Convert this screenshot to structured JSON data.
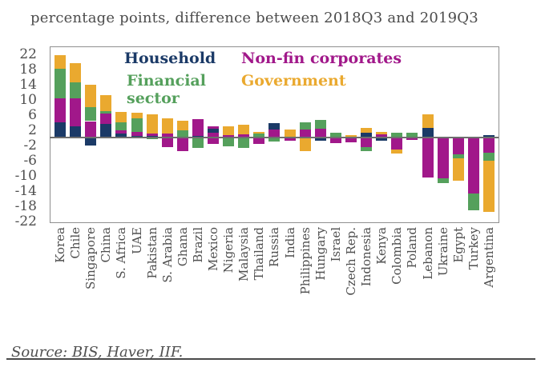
{
  "title": "percentage points, difference between 2018Q3 and 2019Q3",
  "source": "Source: BIS, Haver, IIF.",
  "legend": {
    "household": "Household",
    "nonfin": "Non-fin corporates",
    "financial": "Financial sector",
    "government": "Government"
  },
  "chart_data": {
    "type": "bar",
    "stacked": true,
    "title": "percentage points, difference between 2018Q3 and 2019Q3",
    "xlabel": "",
    "ylabel": "percentage points",
    "ylim": [
      -22,
      24
    ],
    "yticks": [
      22,
      18,
      14,
      10,
      6,
      2,
      -2,
      -6,
      -10,
      -14,
      -18,
      -22
    ],
    "grid": false,
    "legend_position": "top-inside",
    "colors": {
      "H": "#1b3a67",
      "N": "#a1188a",
      "F": "#55a05c",
      "G": "#eaa92f"
    },
    "series_key": {
      "H": "Household",
      "N": "Non-fin corporates",
      "F": "Financial sector",
      "G": "Government"
    },
    "categories": [
      "Korea",
      "Chile",
      "Singapore",
      "China",
      "S. Africa",
      "UAE",
      "Pakistan",
      "S. Arabia",
      "Ghana",
      "Brazil",
      "Mexico",
      "Nigeria",
      "Malaysia",
      "Thailand",
      "Russia",
      "India",
      "Philippines",
      "Hungary",
      "Israel",
      "Czech Rep.",
      "Indonesia",
      "Kenya",
      "Colombia",
      "Poland",
      "Lebanon",
      "Ukraine",
      "Egypt",
      "Turkey",
      "Argentina"
    ],
    "series": [
      {
        "name": "Household",
        "values": [
          4.0,
          3.1,
          -2.1,
          3.6,
          1.1,
          0.5,
          0.5,
          0,
          0,
          0.5,
          0.9,
          0,
          0,
          0,
          1.6,
          0,
          0,
          -0.7,
          0,
          0,
          1.4,
          -0.8,
          0,
          0,
          2.6,
          0,
          0,
          0,
          0.7
        ]
      },
      {
        "name": "Non-fin corporates",
        "values": [
          6.4,
          7.4,
          4.4,
          2.9,
          0.8,
          1.0,
          0.7,
          -1.3,
          -3.5,
          4.4,
          0.5,
          0.8,
          0.9,
          -1.5,
          2.2,
          -0.8,
          2.2,
          2.5,
          -1.4,
          -1.2,
          -2.5,
          1.0,
          -3.0,
          -0.6,
          -10.5,
          -10.6,
          -4.4,
          -14.6,
          -4.0
        ]
      },
      {
        "name": "Financial sector",
        "values": [
          7.8,
          4.1,
          3.7,
          0.5,
          2.1,
          3.6,
          -0.4,
          0,
          2.0,
          -2.7,
          0,
          -2.3,
          -2.6,
          1.2,
          -1.0,
          0,
          1.8,
          2.2,
          1.4,
          0,
          -0.9,
          0,
          1.4,
          1.4,
          0,
          -1.4,
          -0.9,
          -4.4,
          -2.0
        ]
      },
      {
        "name": "Government",
        "values": [
          3.6,
          5.0,
          5.8,
          4.2,
          2.9,
          1.6,
          4.9,
          3.9,
          2.6,
          0,
          0,
          2.2,
          2.5,
          0.3,
          0,
          2.2,
          -3.4,
          0,
          0,
          0.8,
          1.2,
          0.5,
          -1.1,
          0,
          3.5,
          0,
          -5.9,
          0,
          -13.5
        ]
      }
    ],
    "stacks": [
      {
        "name": "Korea",
        "pos": [
          [
            "H",
            4.0
          ],
          [
            "N",
            6.4
          ],
          [
            "F",
            7.8
          ],
          [
            "G",
            3.6
          ]
        ],
        "neg": []
      },
      {
        "name": "Chile",
        "pos": [
          [
            "H",
            3.1
          ],
          [
            "N",
            7.4
          ],
          [
            "F",
            4.1
          ],
          [
            "G",
            5.0
          ]
        ],
        "neg": []
      },
      {
        "name": "Singapore",
        "pos": [
          [
            "N",
            4.4
          ],
          [
            "F",
            3.7
          ],
          [
            "G",
            5.8
          ]
        ],
        "neg": [
          [
            "H",
            2.1
          ]
        ]
      },
      {
        "name": "China",
        "pos": [
          [
            "H",
            3.6
          ],
          [
            "N",
            2.9
          ],
          [
            "F",
            0.5
          ],
          [
            "G",
            4.2
          ]
        ],
        "neg": []
      },
      {
        "name": "S. Africa",
        "pos": [
          [
            "H",
            1.1
          ],
          [
            "N",
            0.8
          ],
          [
            "F",
            2.1
          ],
          [
            "G",
            2.9
          ]
        ],
        "neg": []
      },
      {
        "name": "UAE",
        "pos": [
          [
            "H",
            0.5
          ],
          [
            "N",
            1.0
          ],
          [
            "F",
            3.6
          ],
          [
            "G",
            1.6
          ]
        ],
        "neg": []
      },
      {
        "name": "Pakistan",
        "pos": [
          [
            "H",
            0.5
          ],
          [
            "N",
            0.7
          ],
          [
            "G",
            4.9
          ]
        ],
        "neg": [
          [
            "F",
            0.4
          ]
        ]
      },
      {
        "name": "S. Arabia",
        "pos": [
          [
            "N",
            1.2
          ],
          [
            "G",
            3.9
          ]
        ],
        "neg": [
          [
            "N",
            2.5
          ]
        ]
      },
      {
        "name": "Ghana",
        "pos": [
          [
            "F",
            2.0
          ],
          [
            "G",
            2.6
          ]
        ],
        "neg": [
          [
            "N",
            3.5
          ]
        ]
      },
      {
        "name": "Brazil",
        "pos": [
          [
            "H",
            0.5
          ],
          [
            "N",
            4.4
          ]
        ],
        "neg": [
          [
            "F",
            2.7
          ]
        ]
      },
      {
        "name": "Mexico",
        "pos": [
          [
            "N",
            1.4
          ],
          [
            "H",
            0.9
          ],
          [
            "N",
            0.7
          ]
        ],
        "neg": [
          [
            "N",
            1.6
          ]
        ]
      },
      {
        "name": "Nigeria",
        "pos": [
          [
            "N",
            0.8
          ],
          [
            "G",
            2.2
          ]
        ],
        "neg": [
          [
            "F",
            2.3
          ]
        ]
      },
      {
        "name": "Malaysia",
        "pos": [
          [
            "N",
            0.9
          ],
          [
            "G",
            2.5
          ]
        ],
        "neg": [
          [
            "F",
            2.6
          ]
        ]
      },
      {
        "name": "Thailand",
        "pos": [
          [
            "F",
            1.2
          ],
          [
            "G",
            0.3
          ]
        ],
        "neg": [
          [
            "N",
            1.5
          ]
        ]
      },
      {
        "name": "Russia",
        "pos": [
          [
            "N",
            2.2
          ],
          [
            "H",
            1.6
          ]
        ],
        "neg": [
          [
            "F",
            1.0
          ]
        ]
      },
      {
        "name": "India",
        "pos": [
          [
            "G",
            2.2
          ]
        ],
        "neg": [
          [
            "N",
            0.8
          ]
        ]
      },
      {
        "name": "Philippines",
        "pos": [
          [
            "N",
            2.2
          ],
          [
            "F",
            1.8
          ]
        ],
        "neg": [
          [
            "G",
            3.4
          ]
        ]
      },
      {
        "name": "Hungary",
        "pos": [
          [
            "N",
            2.5
          ],
          [
            "F",
            2.2
          ]
        ],
        "neg": [
          [
            "H",
            0.7
          ]
        ]
      },
      {
        "name": "Israel",
        "pos": [
          [
            "F",
            1.4
          ]
        ],
        "neg": [
          [
            "N",
            1.4
          ]
        ]
      },
      {
        "name": "Czech Rep.",
        "pos": [
          [
            "G",
            0.8
          ]
        ],
        "neg": [
          [
            "N",
            1.2
          ]
        ]
      },
      {
        "name": "Indonesia",
        "pos": [
          [
            "H",
            1.4
          ],
          [
            "G",
            1.2
          ]
        ],
        "neg": [
          [
            "N",
            2.5
          ],
          [
            "F",
            0.9
          ]
        ]
      },
      {
        "name": "Kenya",
        "pos": [
          [
            "N",
            1.0
          ],
          [
            "G",
            0.5
          ]
        ],
        "neg": [
          [
            "H",
            0.8
          ]
        ]
      },
      {
        "name": "Colombia",
        "pos": [
          [
            "F",
            1.4
          ]
        ],
        "neg": [
          [
            "N",
            3.0
          ],
          [
            "G",
            1.1
          ]
        ]
      },
      {
        "name": "Poland",
        "pos": [
          [
            "F",
            1.4
          ]
        ],
        "neg": [
          [
            "N",
            0.6
          ]
        ]
      },
      {
        "name": "Lebanon",
        "pos": [
          [
            "H",
            2.6
          ],
          [
            "G",
            3.5
          ]
        ],
        "neg": [
          [
            "N",
            10.5
          ]
        ]
      },
      {
        "name": "Ukraine",
        "pos": [],
        "neg": [
          [
            "N",
            10.6
          ],
          [
            "F",
            1.4
          ]
        ]
      },
      {
        "name": "Egypt",
        "pos": [],
        "neg": [
          [
            "N",
            4.4
          ],
          [
            "F",
            0.9
          ],
          [
            "G",
            5.9
          ]
        ]
      },
      {
        "name": "Turkey",
        "pos": [],
        "neg": [
          [
            "N",
            14.6
          ],
          [
            "F",
            4.4
          ]
        ]
      },
      {
        "name": "Argentina",
        "pos": [
          [
            "H",
            0.7
          ]
        ],
        "neg": [
          [
            "N",
            4.0
          ],
          [
            "F",
            2.0
          ],
          [
            "G",
            13.5
          ]
        ]
      }
    ]
  }
}
